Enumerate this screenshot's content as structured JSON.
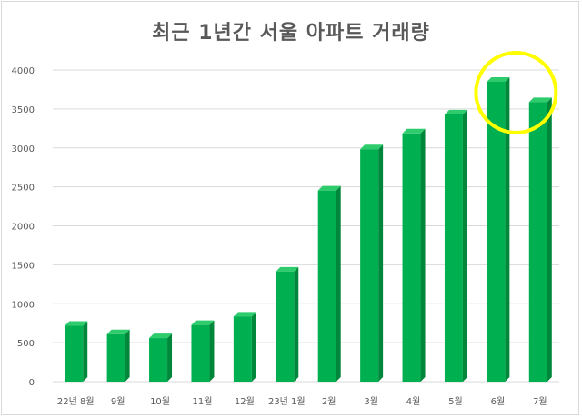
{
  "chart_data": {
    "type": "bar",
    "title": "최근 1년간 서울 아파트 거래량",
    "categories": [
      "22년 8월",
      "9월",
      "10월",
      "11월",
      "12월",
      "23년 1월",
      "2월",
      "3월",
      "4월",
      "5월",
      "6월",
      "7월"
    ],
    "values": [
      717,
      609,
      559,
      727,
      836,
      1413,
      2453,
      2983,
      3186,
      3430,
      3849,
      3588
    ],
    "yticks": [
      0,
      500,
      1000,
      1500,
      2000,
      2500,
      3000,
      3500,
      4000
    ],
    "ylim": [
      0,
      4000
    ],
    "grid": true,
    "bar_color": "#00b050",
    "highlight": {
      "category": "6월",
      "shape": "circle",
      "color": "#ffff00"
    }
  }
}
